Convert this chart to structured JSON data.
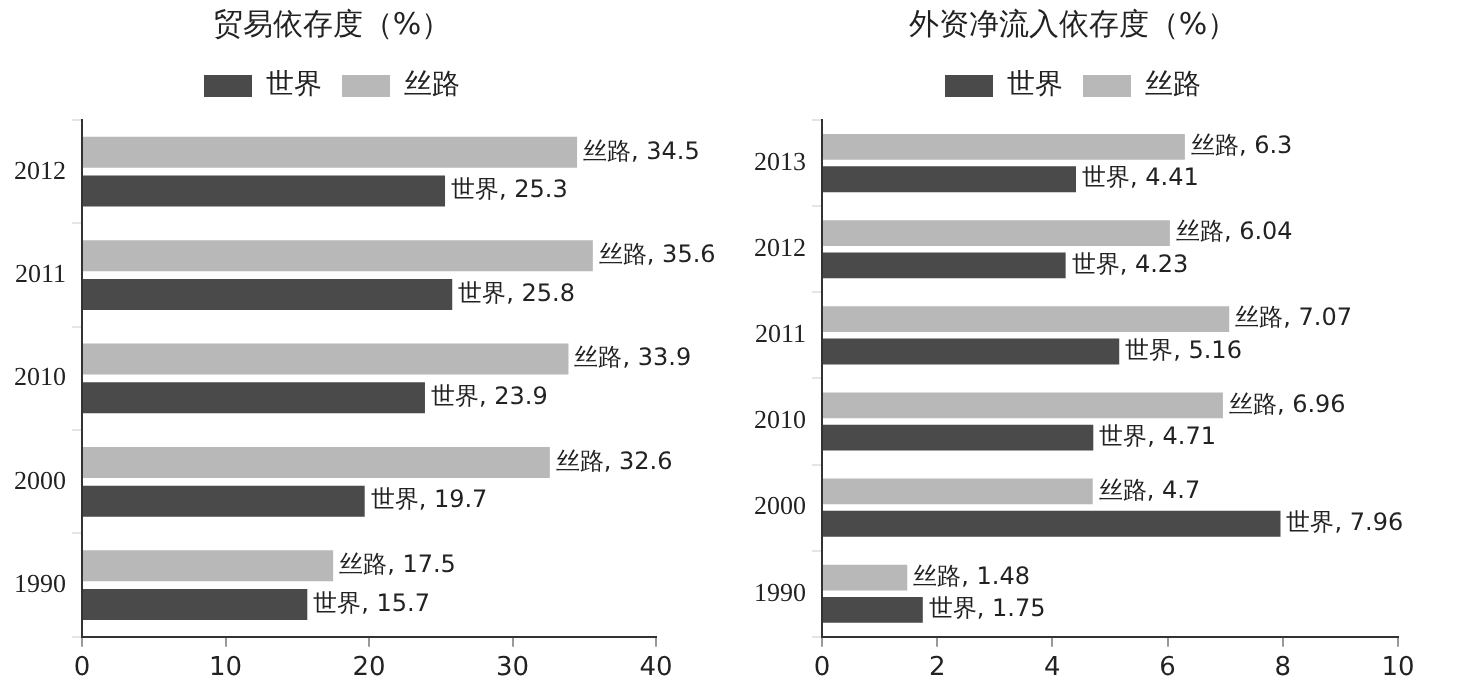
{
  "chart_data": [
    {
      "type": "bar",
      "orientation": "horizontal",
      "title": "贸易依存度（%）",
      "categories": [
        "2012",
        "2011",
        "2010",
        "2000",
        "1990"
      ],
      "xlim": [
        0,
        40
      ],
      "xticks": [
        0,
        10,
        20,
        30,
        40
      ],
      "grid": false,
      "legend": "top",
      "series": [
        {
          "name": "世界",
          "color": "#4a4a4a",
          "values": [
            25.3,
            25.8,
            23.9,
            19.7,
            15.7
          ],
          "value_labels": [
            "世界, 25.3",
            "世界, 25.8",
            "世界, 23.9",
            "世界, 19.7",
            "世界, 15.7"
          ]
        },
        {
          "name": "丝路",
          "color": "#b8b8b8",
          "values": [
            34.5,
            35.6,
            33.9,
            32.6,
            17.5
          ],
          "value_labels": [
            "丝路, 34.5",
            "丝路, 35.6",
            "丝路, 33.9",
            "丝路, 32.6",
            "丝路, 17.5"
          ]
        }
      ]
    },
    {
      "type": "bar",
      "orientation": "horizontal",
      "title": "外资净流入依存度（%）",
      "categories": [
        "2013",
        "2012",
        "2011",
        "2010",
        "2000",
        "1990"
      ],
      "xlim": [
        0,
        10
      ],
      "xticks": [
        0,
        2,
        4,
        6,
        8,
        10
      ],
      "grid": false,
      "legend": "top",
      "series": [
        {
          "name": "世界",
          "color": "#4a4a4a",
          "values": [
            4.41,
            4.23,
            5.16,
            4.71,
            7.96,
            1.75
          ],
          "value_labels": [
            "世界, 4.41",
            "世界, 4.23",
            "世界, 5.16",
            "世界, 4.71",
            "世界, 7.96",
            "世界, 1.75"
          ]
        },
        {
          "name": "丝路",
          "color": "#b8b8b8",
          "values": [
            6.3,
            6.04,
            7.07,
            6.96,
            4.7,
            1.48
          ],
          "value_labels": [
            "丝路, 6.3",
            "丝路, 6.04",
            "丝路, 7.07",
            "丝路, 6.96",
            "丝路, 4.7",
            "丝路, 1.48"
          ]
        }
      ]
    }
  ]
}
